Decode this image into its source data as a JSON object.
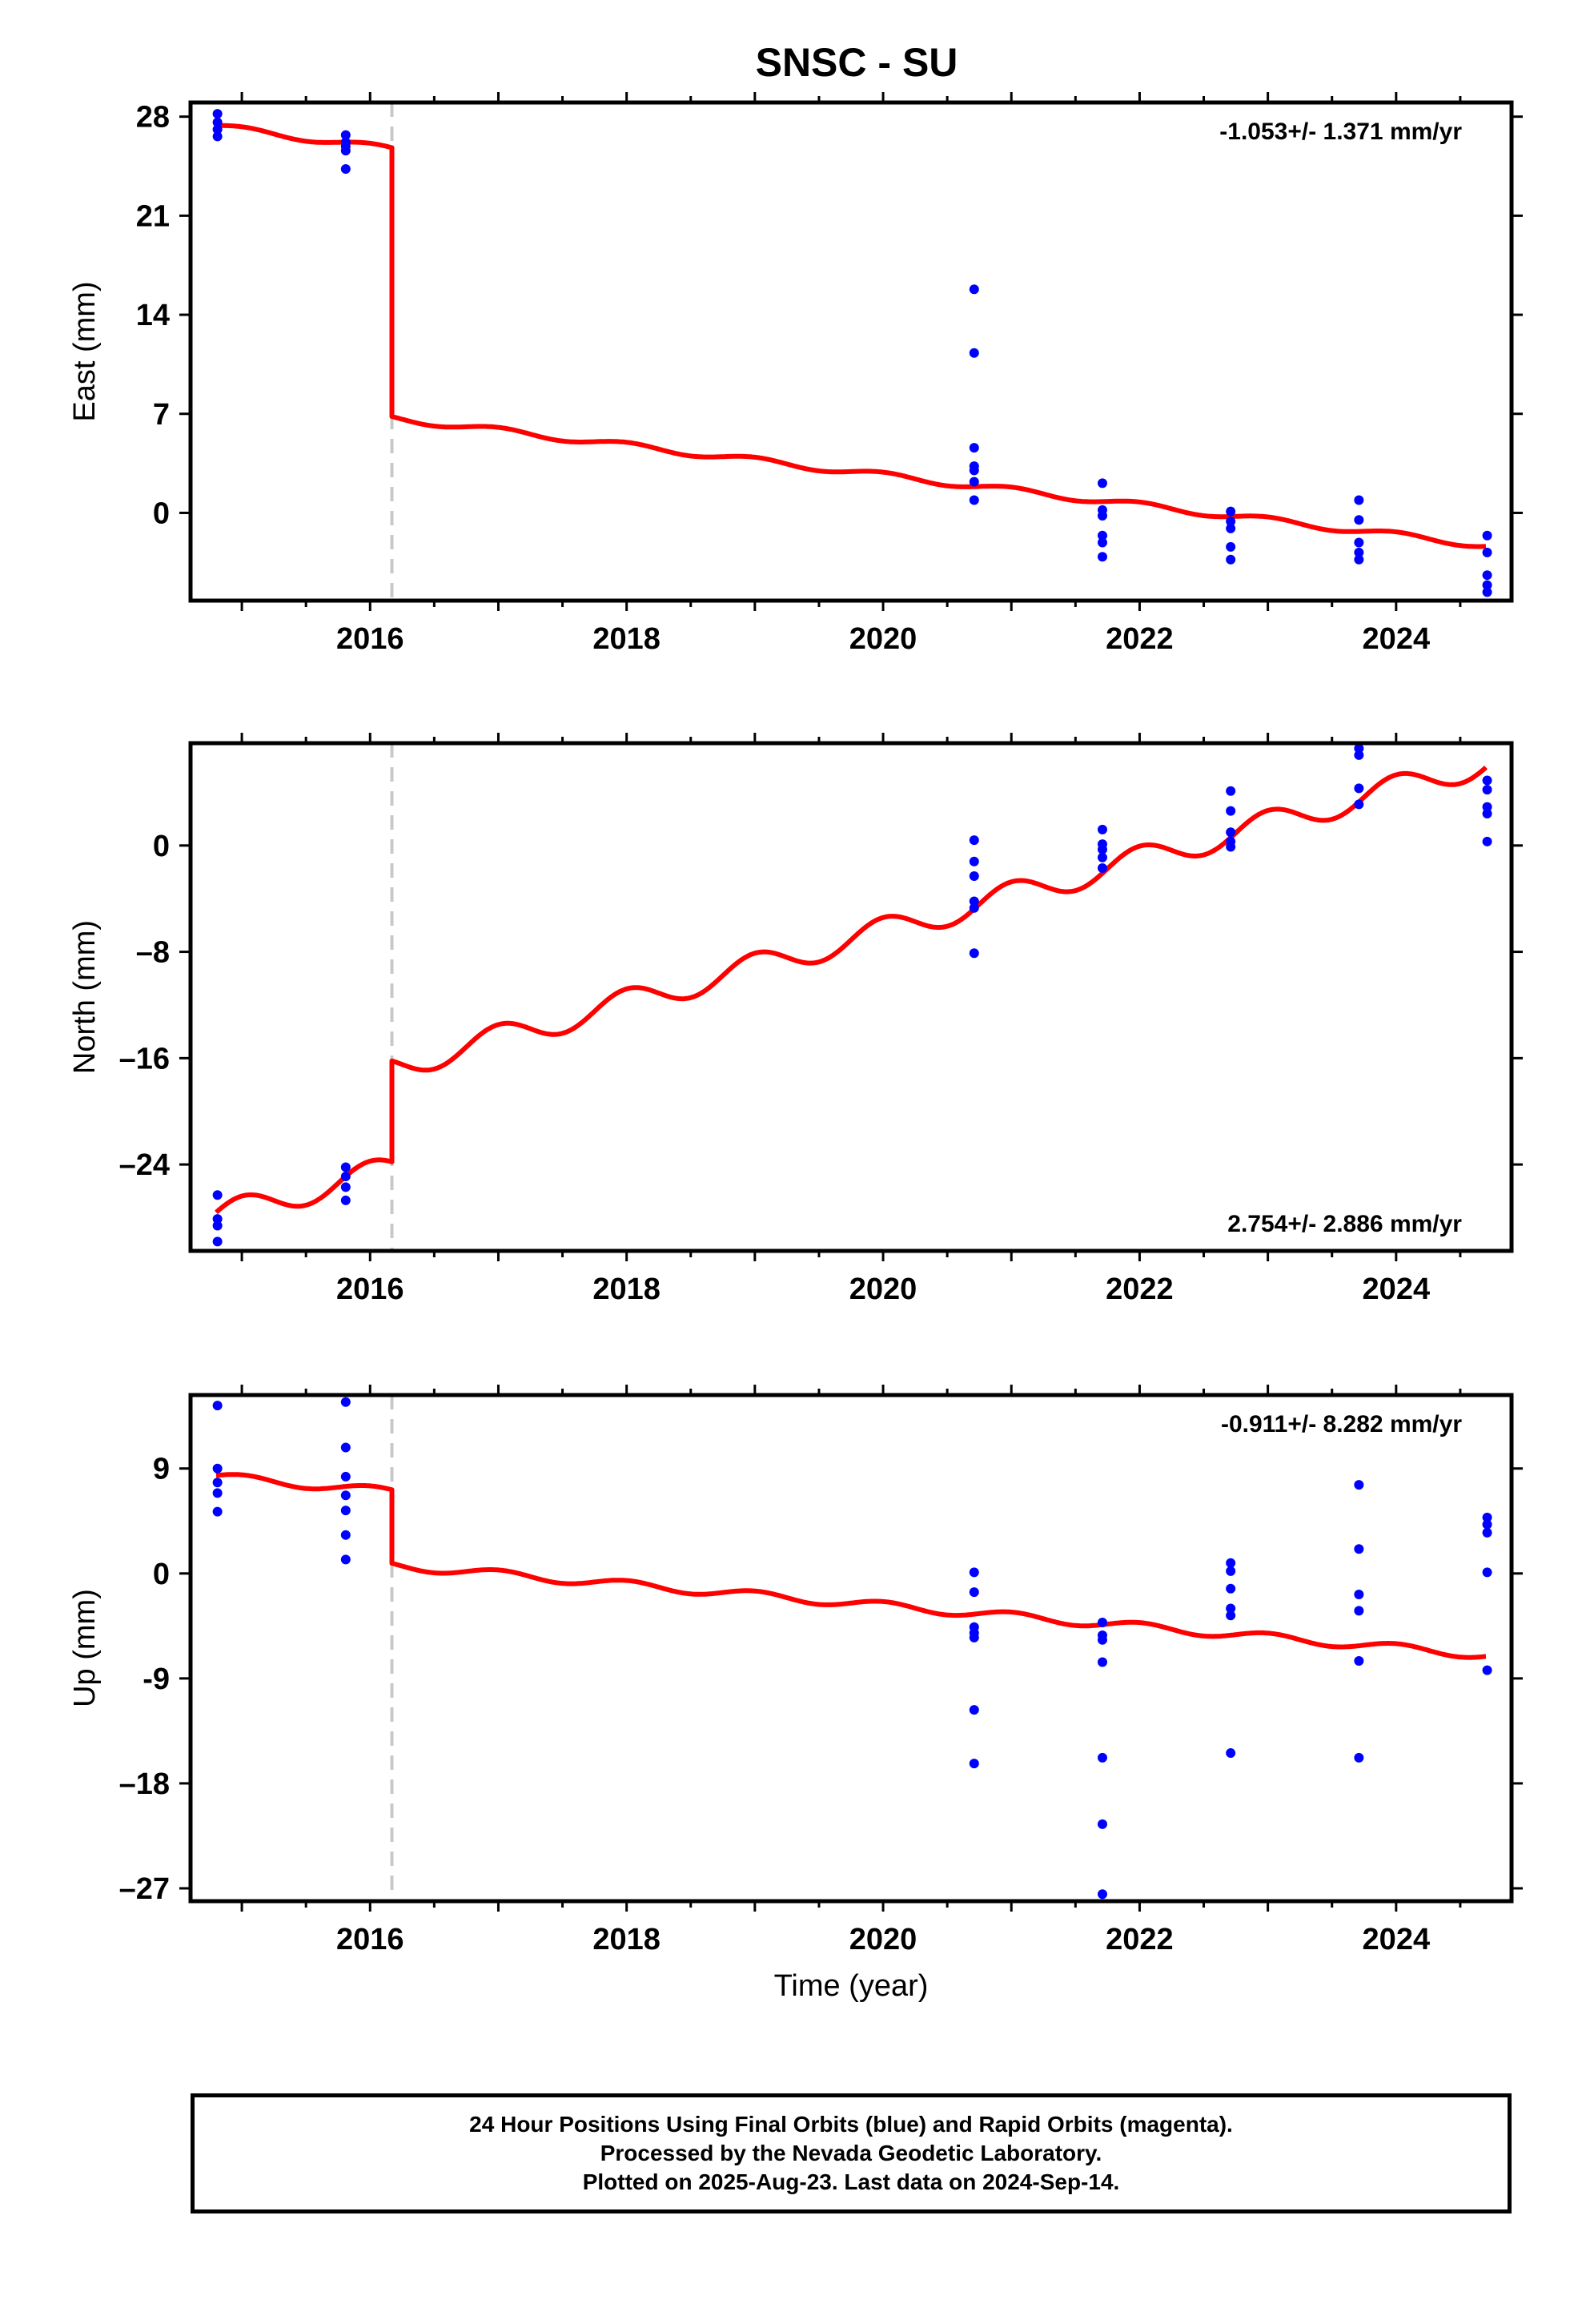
{
  "chart_data": {
    "title": "SNSC - SU",
    "xlabel": "Time (year)",
    "x_ticks": [
      2016,
      2018,
      2020,
      2022,
      2024
    ],
    "x_tick_labels": [
      "2016",
      "2018",
      "2020",
      "2022",
      "2024"
    ],
    "xlim": [
      2014.6,
      2024.9
    ],
    "offset_year": 2016.17,
    "colors": {
      "data": "#0000ff",
      "model": "#ff0000",
      "offset": "#c8c8c8"
    },
    "panels": [
      {
        "name": "east",
        "ylabel": "East (mm)",
        "ylim": [
          -6.2,
          29.0
        ],
        "y_ticks": [
          0,
          7,
          14,
          21,
          28
        ],
        "y_tick_labels": [
          "0",
          "7",
          "14",
          "21",
          "28"
        ],
        "rate_label": "-1.053+/- 1.371 mm/yr",
        "rate_position": "top-right",
        "model": {
          "start_year": 2014.8,
          "end_year": 2024.7,
          "before": [
            27.3,
            25.7
          ],
          "after": [
            6.7,
            -2.3
          ],
          "amplitude": 0.22
        },
        "points": [
          [
            2014.81,
            28.2
          ],
          [
            2014.81,
            27.6
          ],
          [
            2014.81,
            27.1
          ],
          [
            2014.81,
            26.6
          ],
          [
            2015.81,
            26.7
          ],
          [
            2015.81,
            26.2
          ],
          [
            2015.81,
            25.6
          ],
          [
            2015.81,
            24.3
          ],
          [
            2015.81,
            25.9
          ],
          [
            2020.71,
            15.8
          ],
          [
            2020.71,
            11.3
          ],
          [
            2020.71,
            4.6
          ],
          [
            2020.71,
            3.3
          ],
          [
            2020.71,
            3.0
          ],
          [
            2020.71,
            0.9
          ],
          [
            2020.71,
            2.2
          ],
          [
            2021.71,
            2.1
          ],
          [
            2021.71,
            0.2
          ],
          [
            2021.71,
            -0.2
          ],
          [
            2021.71,
            -1.6
          ],
          [
            2021.71,
            -2.1
          ],
          [
            2021.71,
            -3.1
          ],
          [
            2022.71,
            0.1
          ],
          [
            2022.71,
            -0.6
          ],
          [
            2022.71,
            -1.1
          ],
          [
            2022.71,
            -2.4
          ],
          [
            2022.71,
            -3.3
          ],
          [
            2023.71,
            0.9
          ],
          [
            2023.71,
            -0.5
          ],
          [
            2023.71,
            -2.1
          ],
          [
            2023.71,
            -2.8
          ],
          [
            2023.71,
            -3.3
          ],
          [
            2024.71,
            -1.6
          ],
          [
            2024.71,
            -2.8
          ],
          [
            2024.71,
            -4.4
          ],
          [
            2024.71,
            -5.1
          ],
          [
            2024.71,
            -5.6
          ]
        ]
      },
      {
        "name": "north",
        "ylabel": "North (mm)",
        "ylim": [
          -30.5,
          7.7
        ],
        "y_ticks": [
          -24,
          -16,
          -8,
          0
        ],
        "y_tick_labels": [
          "–24",
          "–16",
          "–8",
          "0"
        ],
        "rate_label": "2.754+/- 2.886 mm/yr",
        "rate_position": "bottom-right",
        "model": {
          "start_year": 2014.8,
          "end_year": 2024.7,
          "before": [
            -27.9,
            -24.3
          ],
          "after": [
            -16.7,
            6.2
          ],
          "amplitude": 1.0
        },
        "points": [
          [
            2014.81,
            -26.3
          ],
          [
            2014.81,
            -28.1
          ],
          [
            2014.81,
            -29.8
          ],
          [
            2014.81,
            -28.6
          ],
          [
            2015.81,
            -24.2
          ],
          [
            2015.81,
            -24.9
          ],
          [
            2015.81,
            -25.7
          ],
          [
            2015.81,
            -26.7
          ],
          [
            2020.71,
            0.4
          ],
          [
            2020.71,
            -1.2
          ],
          [
            2020.71,
            -2.3
          ],
          [
            2020.71,
            -4.2
          ],
          [
            2020.71,
            -4.7
          ],
          [
            2020.71,
            -8.1
          ],
          [
            2021.71,
            1.2
          ],
          [
            2021.71,
            0.1
          ],
          [
            2021.71,
            -0.3
          ],
          [
            2021.71,
            -0.9
          ],
          [
            2021.71,
            -1.7
          ],
          [
            2022.71,
            4.1
          ],
          [
            2022.71,
            2.6
          ],
          [
            2022.71,
            1.0
          ],
          [
            2022.71,
            0.3
          ],
          [
            2022.71,
            -0.1
          ],
          [
            2023.71,
            7.3
          ],
          [
            2023.71,
            6.8
          ],
          [
            2023.71,
            4.3
          ],
          [
            2023.71,
            3.1
          ],
          [
            2024.71,
            4.9
          ],
          [
            2024.71,
            4.2
          ],
          [
            2024.71,
            2.9
          ],
          [
            2024.71,
            2.4
          ],
          [
            2024.71,
            0.3
          ]
        ]
      },
      {
        "name": "up",
        "ylabel": "Up (mm)",
        "ylim": [
          -28.1,
          15.3
        ],
        "y_ticks": [
          -27,
          -18,
          -9,
          0,
          9
        ],
        "y_tick_labels": [
          "–27",
          "–18",
          "-9",
          "0",
          "9"
        ],
        "rate_label": "-0.911+/- 8.282 mm/yr",
        "rate_position": "top-right",
        "model": {
          "start_year": 2014.8,
          "end_year": 2024.7,
          "before": [
            8.3,
            7.0
          ],
          "after": [
            0.7,
            -7.0
          ],
          "amplitude": 0.35
        },
        "points": [
          [
            2014.81,
            14.4
          ],
          [
            2014.81,
            9.0
          ],
          [
            2014.81,
            7.8
          ],
          [
            2014.81,
            6.9
          ],
          [
            2014.81,
            5.3
          ],
          [
            2015.81,
            14.7
          ],
          [
            2015.81,
            10.8
          ],
          [
            2015.81,
            8.3
          ],
          [
            2015.81,
            6.7
          ],
          [
            2015.81,
            5.4
          ],
          [
            2015.81,
            3.3
          ],
          [
            2015.81,
            1.2
          ],
          [
            2020.71,
            0.1
          ],
          [
            2020.71,
            -1.6
          ],
          [
            2020.71,
            -4.6
          ],
          [
            2020.71,
            -5.1
          ],
          [
            2020.71,
            -5.5
          ],
          [
            2020.71,
            -11.7
          ],
          [
            2020.71,
            -16.3
          ],
          [
            2021.71,
            -4.2
          ],
          [
            2021.71,
            -5.3
          ],
          [
            2021.71,
            -5.7
          ],
          [
            2021.71,
            -7.6
          ],
          [
            2021.71,
            -15.8
          ],
          [
            2021.71,
            -21.5
          ],
          [
            2021.71,
            -27.5
          ],
          [
            2022.71,
            0.9
          ],
          [
            2022.71,
            0.2
          ],
          [
            2022.71,
            -1.3
          ],
          [
            2022.71,
            -3.0
          ],
          [
            2022.71,
            -3.6
          ],
          [
            2022.71,
            -15.4
          ],
          [
            2023.71,
            7.6
          ],
          [
            2023.71,
            2.1
          ],
          [
            2023.71,
            -1.8
          ],
          [
            2023.71,
            -3.2
          ],
          [
            2023.71,
            -7.5
          ],
          [
            2023.71,
            -15.8
          ],
          [
            2024.71,
            4.8
          ],
          [
            2024.71,
            4.2
          ],
          [
            2024.71,
            3.5
          ],
          [
            2024.71,
            0.1
          ],
          [
            2024.71,
            -8.3
          ]
        ]
      }
    ]
  },
  "caption": {
    "line1": "24 Hour Positions Using Final Orbits (blue) and Rapid Orbits (magenta).",
    "line2": "Processed by the Nevada Geodetic Laboratory.",
    "line3": "Plotted on 2025-Aug-23. Last data on 2024-Sep-14."
  }
}
